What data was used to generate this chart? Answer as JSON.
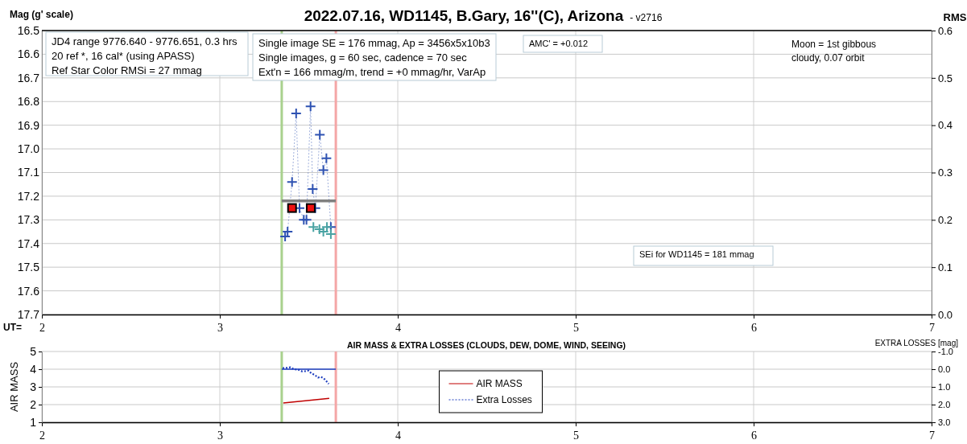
{
  "chart_data": [
    {
      "type": "line",
      "title": "2022.07.16, WD1145, B.Gary, 16''(C), Arizona",
      "subtitle": "- v2716",
      "xlabel": "UT=",
      "ylabel": "Mag (g' scale)",
      "y2label": "RMS",
      "xlim": [
        2,
        7
      ],
      "xticks": [
        2,
        3,
        4,
        5,
        6,
        7
      ],
      "ylim": [
        17.7,
        16.5
      ],
      "yticks": [
        16.5,
        16.6,
        16.7,
        16.8,
        16.9,
        {
          "value": 17.0,
          "label": "17.0"
        },
        17.1,
        17.2,
        17.3,
        17.4,
        17.5,
        17.6,
        17.7
      ],
      "y2lim": [
        0,
        0.6
      ],
      "y2ticks": [
        {
          "value": 0,
          "label": "0.0"
        },
        0.1,
        0.2,
        0.3,
        0.4,
        0.5,
        0.6
      ],
      "grid": true,
      "legend": false,
      "series": [
        {
          "color": "#2e52b2",
          "marker": "cross",
          "line_style": "dotted",
          "x": [
            3.367,
            3.381,
            3.406,
            3.429,
            3.448,
            3.472,
            3.487,
            3.51,
            3.522,
            3.537,
            3.562,
            3.582,
            3.599,
            3.624
          ],
          "values": [
            17.37,
            17.35,
            17.14,
            16.85,
            17.25,
            17.3,
            17.3,
            16.82,
            17.17,
            17.25,
            16.94,
            17.09,
            17.04,
            17.33
          ]
        },
        {
          "type": "scatter",
          "color": "#4aa3a3",
          "marker": "cross",
          "x": [
            3.526,
            3.56,
            3.582,
            3.602,
            3.624
          ],
          "values": [
            17.33,
            17.34,
            17.35,
            17.33,
            17.36
          ]
        },
        {
          "color": "#808080",
          "marker": "none",
          "line_style": "solid",
          "x": [
            3.348,
            3.652
          ],
          "values": [
            17.22,
            17.22
          ]
        },
        {
          "type": "scatter",
          "color": "#ee1111",
          "marker": "square",
          "x": [
            3.406,
            3.511
          ],
          "values": [
            17.25,
            17.25
          ]
        }
      ],
      "ref_lines": [
        {
          "axis": "x",
          "value": 3.348,
          "color": "#a9d18e"
        },
        {
          "axis": "x",
          "value": 3.652,
          "color": "#f4a6a6"
        }
      ],
      "annotations": [
        "JD4 range 9776.640 - 9776.651, 0.3 hrs\n20 ref *, 16 cal* (using APASS)\nRef Star Color RMSi = 27 mmag",
        "Single image SE = 176 mmag, Ap = 3456x5x10b3\nSingle images, g = 60 sec, cadence = 70 sec\nExt'n = 166 mmag/m, trend = +0 mmag/hr, VarAp",
        "AMC' = +0.012",
        "Moon = 1st gibbous\ncloudy,  0.07 orbit",
        "SEi for WD1145 = 181 mmag"
      ]
    },
    {
      "type": "line",
      "title": "AIR MASS & EXTRA LOSSES (CLOUDS, DEW, DOME, WIND, SEEING)",
      "ylabel": "AIR MASS",
      "y2label": "EXTRA LOSSES [mag]",
      "xlim": [
        2,
        7
      ],
      "xticks": [
        2,
        3,
        4,
        5,
        6,
        7
      ],
      "ylim": [
        1,
        5
      ],
      "yticks": [
        1,
        2,
        3,
        4,
        5
      ],
      "y2lim": [
        3,
        -1
      ],
      "y2ticks": [
        {
          "value": -1,
          "label": "-1.0"
        },
        {
          "value": 0,
          "label": "0.0"
        },
        {
          "value": 1,
          "label": "1.0"
        },
        {
          "value": 2,
          "label": "2.0"
        },
        {
          "value": 3,
          "label": "3.0"
        }
      ],
      "grid": true,
      "legend": "center",
      "series": [
        {
          "name": "AIR MASS",
          "color": "#c00000",
          "marker": "none",
          "line_style": "solid",
          "x": [
            3.357,
            3.615
          ],
          "values": [
            2.09,
            2.35
          ]
        },
        {
          "name": "Extra Losses",
          "axis": "y2",
          "color": "#1f3fbf",
          "marker": "none",
          "line_style": "dotted",
          "x": [
            3.353,
            3.379,
            3.397,
            3.416,
            3.439,
            3.462,
            3.481,
            3.499,
            3.514,
            3.533,
            3.552,
            3.567,
            3.582,
            3.597,
            3.612
          ],
          "values": [
            -0.06,
            -0.08,
            -0.11,
            0.0,
            0.02,
            0.12,
            0.11,
            0.08,
            0.23,
            0.32,
            0.47,
            0.44,
            0.5,
            0.65,
            0.83
          ]
        },
        {
          "axis": "y2",
          "color": "#1f3fbf",
          "marker": "none",
          "line_style": "solid",
          "x": [
            3.348,
            3.652
          ],
          "values": [
            0,
            0
          ]
        }
      ],
      "ref_lines": [
        {
          "axis": "x",
          "value": 3.348,
          "color": "#a9d18e"
        },
        {
          "axis": "x",
          "value": 3.652,
          "color": "#f4a6a6"
        }
      ]
    }
  ]
}
